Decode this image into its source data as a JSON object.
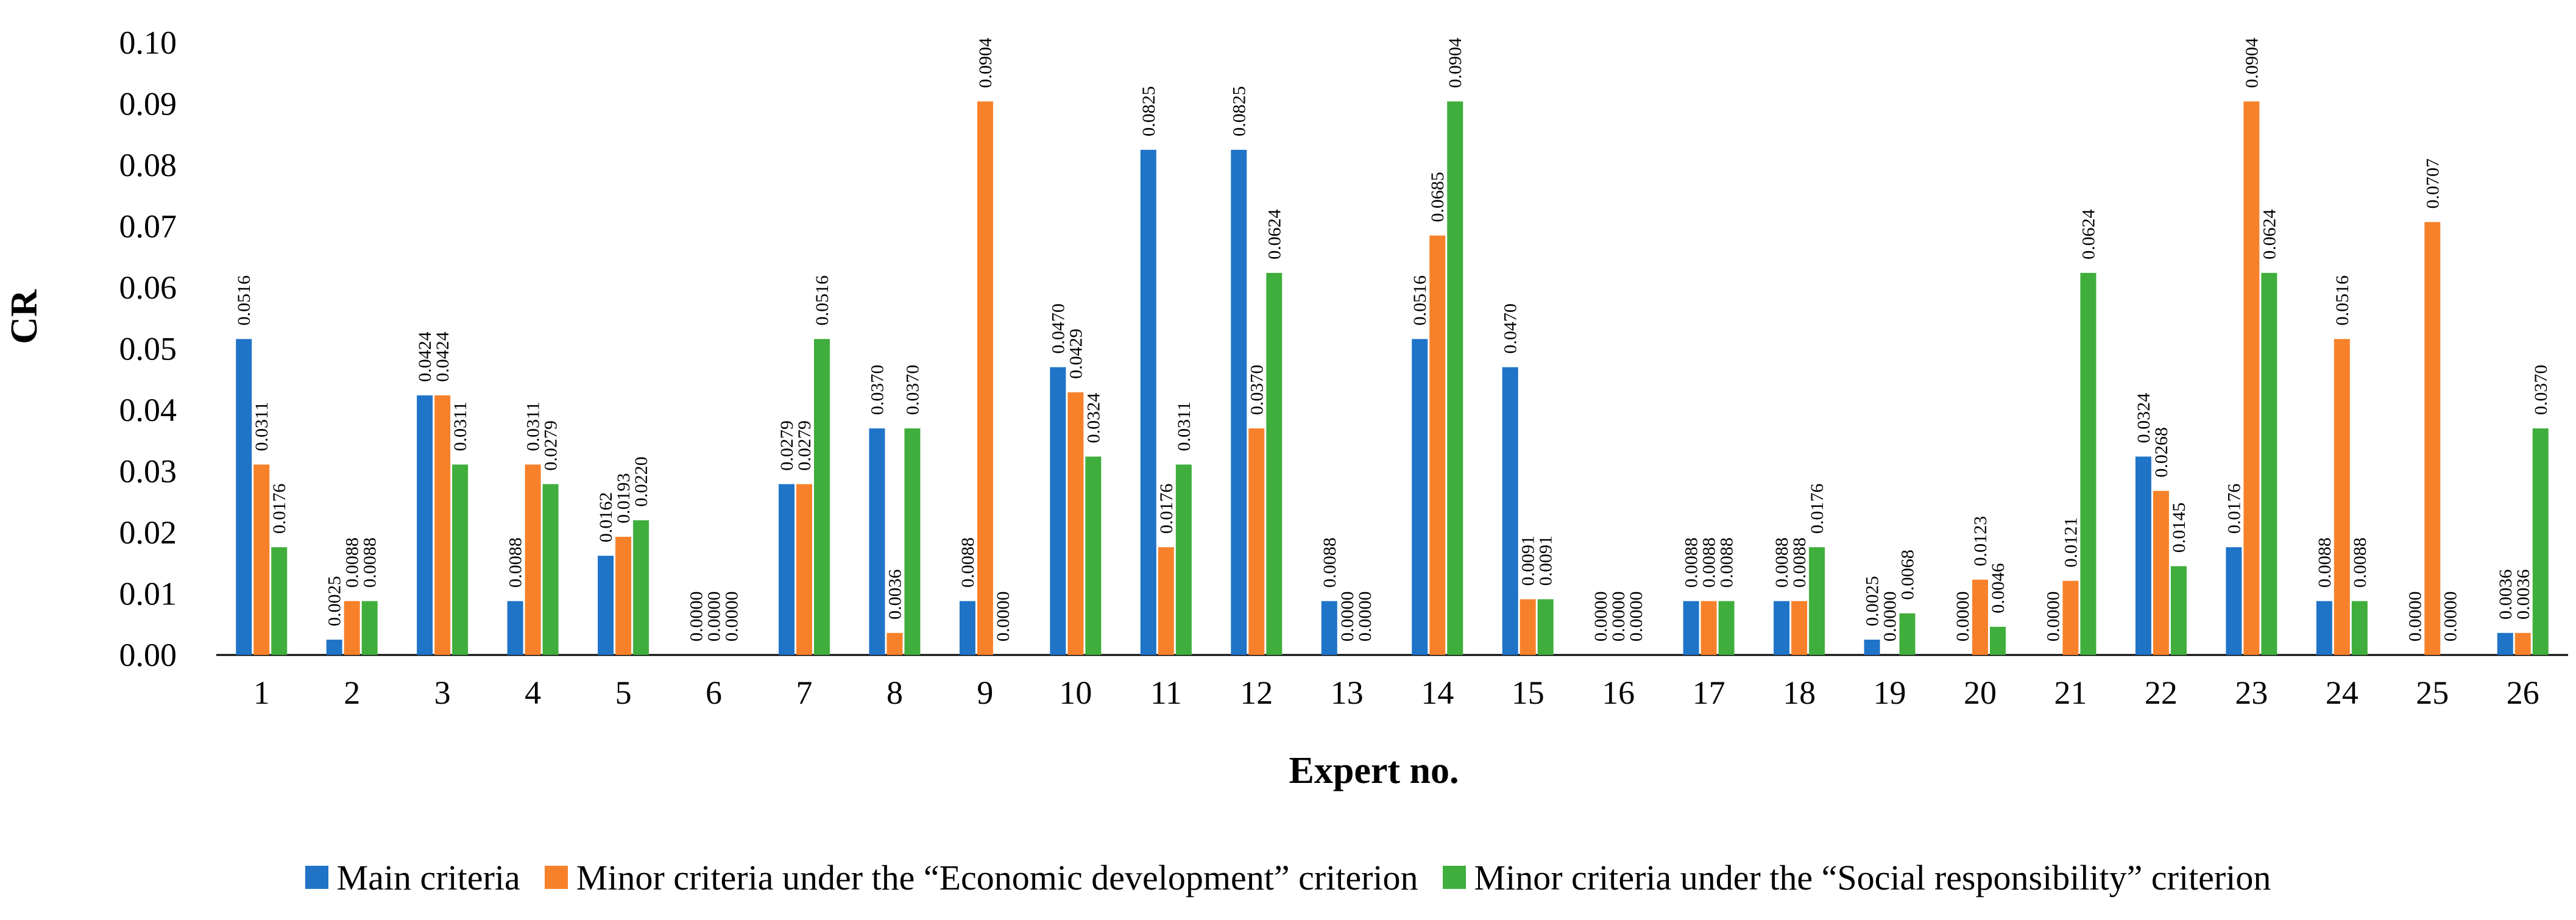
{
  "chart_data": {
    "type": "bar",
    "title": "",
    "xlabel": "Expert no.",
    "ylabel": "CR",
    "ylim": [
      0,
      0.1
    ],
    "yticks": [
      "0.00",
      "0.01",
      "0.02",
      "0.03",
      "0.04",
      "0.05",
      "0.06",
      "0.07",
      "0.08",
      "0.09",
      "0.10"
    ],
    "categories": [
      "1",
      "2",
      "3",
      "4",
      "5",
      "6",
      "7",
      "8",
      "9",
      "10",
      "11",
      "12",
      "13",
      "14",
      "15",
      "16",
      "17",
      "18",
      "19",
      "20",
      "21",
      "22",
      "23",
      "24",
      "25",
      "26"
    ],
    "grid": false,
    "legend_position": "bottom",
    "series": [
      {
        "name": "Main criteria",
        "color": "#1f74c8",
        "values": [
          0.0516,
          0.0025,
          0.0424,
          0.0088,
          0.0162,
          0.0,
          0.0279,
          0.037,
          0.0088,
          0.047,
          0.0825,
          0.0825,
          0.0088,
          0.0516,
          0.047,
          0.0,
          0.0088,
          0.0088,
          0.0025,
          0.0,
          0.0,
          0.0324,
          0.0176,
          0.0088,
          0.0,
          0.0036
        ],
        "labels": [
          "0.0516",
          "0.0025",
          "0.0424",
          "0.0088",
          "0.0162",
          "0.0000",
          "0.0279",
          "0.0370",
          "0.0088",
          "0.0470",
          "0.0825",
          "0.0825",
          "0.0088",
          "0.0516",
          "0.0470",
          "0.0000",
          "0.0088",
          "0.0088",
          "0.0025",
          "0.0000",
          "0.0000",
          "0.0324",
          "0.0176",
          "0.0088",
          "0.0000",
          "0.0036"
        ]
      },
      {
        "name": "Minor criteria under the “Economic development” criterion",
        "color": "#f7812a",
        "values": [
          0.0311,
          0.0088,
          0.0424,
          0.0311,
          0.0193,
          0.0,
          0.0279,
          0.0036,
          0.0904,
          0.0429,
          0.0176,
          0.037,
          0.0,
          0.0685,
          0.0091,
          0.0,
          0.0088,
          0.0088,
          0.0,
          0.0123,
          0.0121,
          0.0268,
          0.0904,
          0.0516,
          0.0707,
          0.0036
        ],
        "labels": [
          "0.0311",
          "0.0088",
          "0.0424",
          "0.0311",
          "0.0193",
          "0.0000",
          "0.0279",
          "0.0036",
          "0.0904",
          "0.0429",
          "0.0176",
          "0.0370",
          "0.0000",
          "0.0685",
          "0.0091",
          "0.0000",
          "0.0088",
          "0.0088",
          "0.0000",
          "0.0123",
          "0.0121",
          "0.0268",
          "0.0904",
          "0.0516",
          "0.0707",
          "0.0036"
        ]
      },
      {
        "name": "Minor criteria under the “Social responsibility” criterion",
        "color": "#3fae3c",
        "values": [
          0.0176,
          0.0088,
          0.0311,
          0.0279,
          0.022,
          0.0,
          0.0516,
          0.037,
          0.0,
          0.0324,
          0.0311,
          0.0624,
          0.0,
          0.0904,
          0.0091,
          0.0,
          0.0088,
          0.0176,
          0.0068,
          0.0046,
          0.0624,
          0.0145,
          0.0624,
          0.0088,
          0.0,
          0.037
        ],
        "labels": [
          "0.0176",
          "0.0088",
          "0.0311",
          "0.0279",
          "0.0220",
          "0.0000",
          "0.0516",
          "0.0370",
          "0.0000",
          "0.0324",
          "0.0311",
          "0.0624",
          "0.0000",
          "0.0904",
          "0.0091",
          "0.0000",
          "0.0088",
          "0.0176",
          "0.0068",
          "0.0046",
          "0.0624",
          "0.0145",
          "0.0624",
          "0.0088",
          "0.0000",
          "0.0370"
        ]
      }
    ]
  }
}
